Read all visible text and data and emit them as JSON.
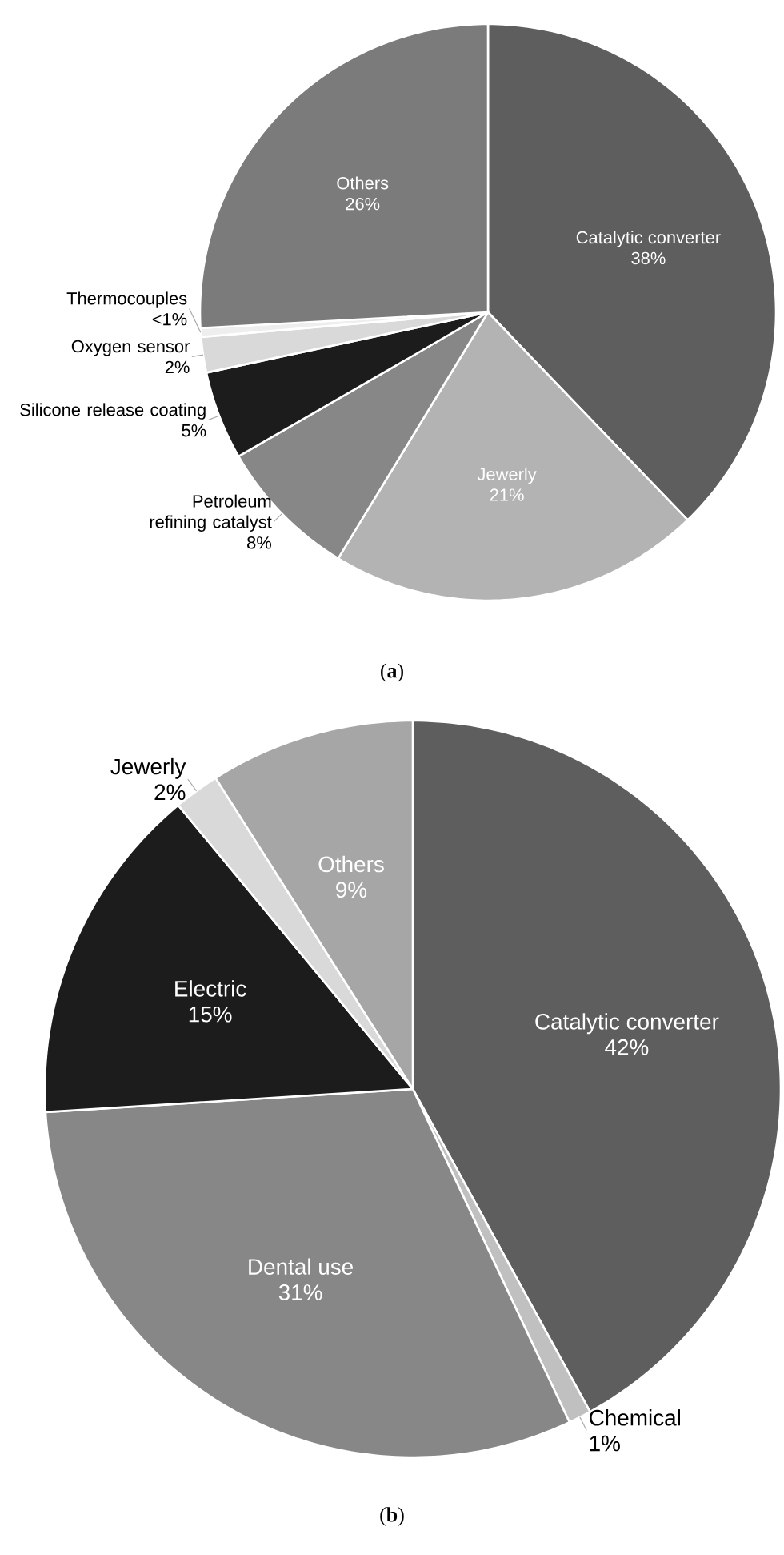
{
  "chart_data": [
    {
      "type": "pie",
      "categories": [
        "Catalytic converter",
        "Jewerly",
        "Petroleum refining catalyst",
        "Silicone release coating",
        "Oxygen sensor",
        "Thermocouples",
        "Others"
      ],
      "values": [
        38,
        21,
        8,
        5,
        2,
        0.5,
        26
      ],
      "value_labels": [
        "38%",
        "21%",
        "8%",
        "5%",
        "2%",
        "<1%",
        "26%"
      ],
      "colors": [
        "#5e5e5e",
        "#b3b3b3",
        "#878787",
        "#1c1c1c",
        "#d9d9d9",
        "#eeeeee",
        "#7b7b7b"
      ],
      "annotations": [
        "(**a**)"
      ]
    },
    {
      "type": "pie",
      "categories": [
        "Catalytic converter",
        "Chemical",
        "Dental use",
        "Electric",
        "Jewerly",
        "Others"
      ],
      "values": [
        42,
        1,
        31,
        15,
        2,
        9
      ],
      "value_labels": [
        "42%",
        "1%",
        "31%",
        "15%",
        "2%",
        "9%"
      ],
      "colors": [
        "#5e5e5e",
        "#c0c0c0",
        "#878787",
        "#1c1c1c",
        "#d9d9d9",
        "#a6a6a6"
      ],
      "annotations": [
        "(**b**)"
      ]
    }
  ]
}
